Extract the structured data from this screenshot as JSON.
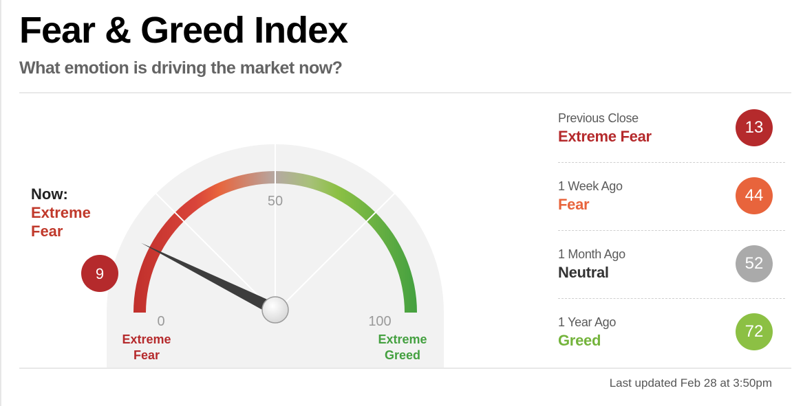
{
  "header": {
    "title": "Fear & Greed Index",
    "subtitle": "What emotion is driving the market now?"
  },
  "now": {
    "label": "Now:",
    "rating": "Extreme Fear",
    "value": 9,
    "value_text": "9",
    "color": "#b52a2c"
  },
  "gauge": {
    "min": 0,
    "mid": 50,
    "max": 100,
    "min_label": "0",
    "mid_label": "50",
    "max_label": "100",
    "left_end_label": [
      "Extreme",
      "Fear"
    ],
    "right_end_label": [
      "Extreme",
      "Greed"
    ],
    "colors": {
      "extreme_fear": "#c0302c",
      "fear": "#e8643c",
      "neutral": "#b0b0b0",
      "greed": "#8cc044",
      "extreme_greed": "#44a040"
    }
  },
  "history": [
    {
      "label": "Previous Close",
      "rating": "Extreme Fear",
      "value": "13",
      "rating_color": "#b52a2c",
      "badge_color": "#b52a2c"
    },
    {
      "label": "1 Week Ago",
      "rating": "Fear",
      "value": "44",
      "rating_color": "#e8643c",
      "badge_color": "#e8643c"
    },
    {
      "label": "1 Month Ago",
      "rating": "Neutral",
      "value": "52",
      "rating_color": "#333333",
      "badge_color": "#aaaaaa"
    },
    {
      "label": "1 Year Ago",
      "rating": "Greed",
      "value": "72",
      "rating_color": "#74b43c",
      "badge_color": "#8cc044"
    }
  ],
  "footer": {
    "last_updated": "Last updated Feb 28 at 3:50pm"
  }
}
